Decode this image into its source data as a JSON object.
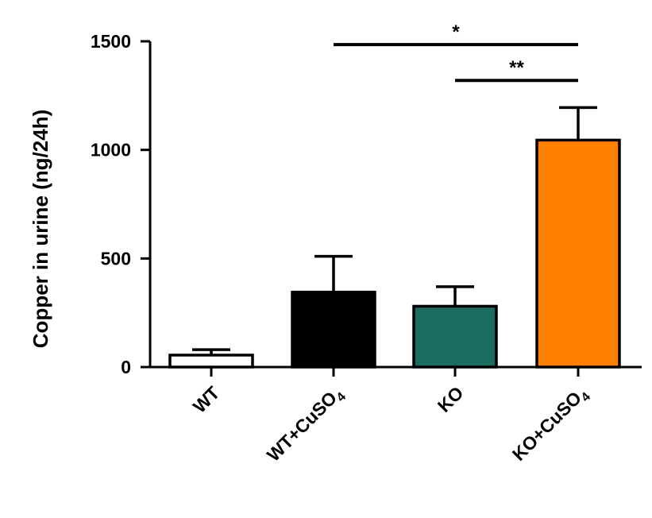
{
  "chart_data": {
    "type": "bar",
    "categories": [
      "WT",
      "WT+CuSO4",
      "KO",
      "KO+CuSO4"
    ],
    "category_labels": [
      {
        "main": "WT",
        "sub": ""
      },
      {
        "main": "WT+CuSO",
        "sub": "4"
      },
      {
        "main": "KO",
        "sub": ""
      },
      {
        "main": "KO+CuSO",
        "sub": "4"
      }
    ],
    "values": [
      55,
      345,
      280,
      1045
    ],
    "errors": [
      25,
      165,
      90,
      150
    ],
    "colors": [
      "#ffffff",
      "#000000",
      "#1b6b5e",
      "#ff8000"
    ],
    "edge_color": "#000000",
    "ylabel": "Copper in urine (ng/24h)",
    "xlabel": "",
    "ylim": [
      0,
      1500
    ],
    "yticks": [
      0,
      500,
      1000,
      1500
    ],
    "significance": [
      {
        "from": "WT+CuSO4",
        "to": "KO+CuSO4",
        "label": "*",
        "level": 1485
      },
      {
        "from": "KO",
        "to": "KO+CuSO4",
        "label": "**",
        "level": 1320
      }
    ],
    "grid": false,
    "legend": "none"
  }
}
